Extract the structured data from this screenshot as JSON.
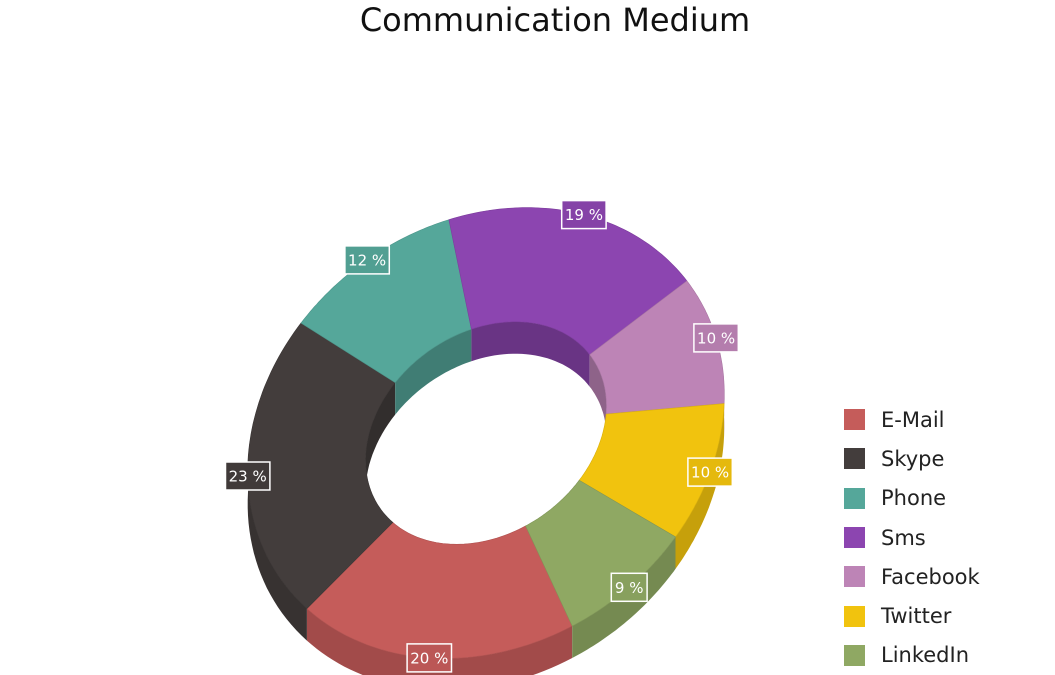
{
  "chart_data": {
    "type": "pie",
    "title": "Communication Medium",
    "categories": [
      "E-Mail",
      "Skype",
      "Phone",
      "Sms",
      "Facebook",
      "Twitter",
      "LinkedIn"
    ],
    "values": [
      20,
      23,
      12,
      19,
      10,
      10,
      9
    ],
    "labels": [
      "20 %",
      "23 %",
      "12 %",
      "19 %",
      "10 %",
      "10 %",
      "9 %"
    ],
    "colors": [
      "#C55C5A",
      "#433D3C",
      "#55A79A",
      "#8C45B0",
      "#BD84B6",
      "#F1C30E",
      "#8FA863"
    ],
    "style": "3d-doughnut",
    "legend_position": "right"
  }
}
